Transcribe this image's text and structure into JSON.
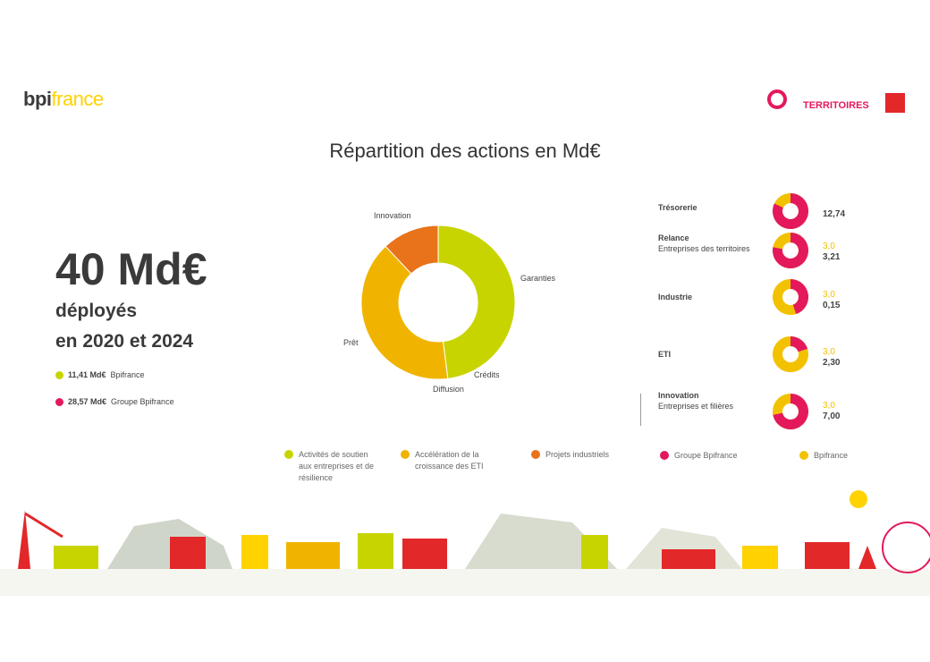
{
  "header": {
    "logo_part1": "bpi",
    "logo_part2": "france",
    "partner_top": "",
    "partner_main": "TERRITOIRES"
  },
  "title": "Répartition des actions en Md€",
  "left": {
    "big": "40 Md€",
    "sub1": "déployés",
    "sub2": "en 2020 et 2024",
    "legend": [
      {
        "value": "11,41 Md€",
        "label": "Bpifrance",
        "color": "#c8d400"
      },
      {
        "value": "28,57 Md€",
        "label": "Groupe Bpifrance",
        "color": "#e3195c"
      }
    ]
  },
  "donut_labels": {
    "top": "Innovation",
    "right": "Garanties",
    "bottom_right": "Crédits",
    "bottom": "Diffusion",
    "left": "Prêt"
  },
  "bottom_legend": [
    {
      "label": "Activités de soutien aux entreprises et de résilience",
      "color": "#c8d400"
    },
    {
      "label": "Accélération de la croissance des ETI",
      "color": "#f0b400"
    },
    {
      "label": "Projets industriels",
      "color": "#e8731a"
    }
  ],
  "chart_data": {
    "type": "pie",
    "title": "Répartition des actions en Md€",
    "donut": true,
    "series": [
      {
        "name": "Activités de soutien aux entreprises et de résilience",
        "value": 48,
        "color": "#c8d400"
      },
      {
        "name": "Accélération de la croissance des ETI",
        "value": 40,
        "color": "#f0b400"
      },
      {
        "name": "Projets industriels",
        "value": 12,
        "color": "#e8731a"
      }
    ]
  },
  "right_rows": [
    {
      "label": "Trésorerie",
      "sub": "",
      "top_value": "",
      "value": "12,74",
      "pct": 0.82,
      "color": "#e3195c"
    },
    {
      "label": "Relance",
      "sub": "Entreprises des territoires",
      "top_value": "3,0",
      "value": "3,21",
      "pct": 0.78,
      "color": "#e3195c"
    },
    {
      "label": "Industrie",
      "sub": "",
      "top_value": "3,0",
      "value": "0,15",
      "pct": 0.45,
      "color": "#e3195c"
    },
    {
      "label": "ETI",
      "sub": "",
      "top_value": "3,0",
      "value": "2,30",
      "pct": 0.2,
      "color": "#e3195c"
    },
    {
      "label": "Innovation",
      "sub": "Entreprises et filières",
      "top_value": "3,0",
      "value": "7,00",
      "pct": 0.72,
      "color": "#e3195c"
    }
  ],
  "right_legend": [
    {
      "label": "Groupe Bpifrance",
      "color": "#e3195c"
    },
    {
      "label": "Bpifrance",
      "color": "#f2c200"
    }
  ],
  "mini_bg": "#f2c200"
}
